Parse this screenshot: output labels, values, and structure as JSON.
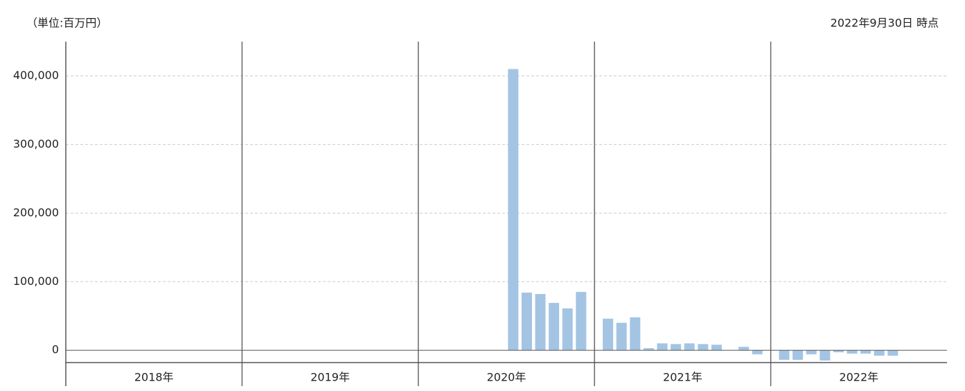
{
  "chart_data": {
    "type": "bar",
    "unit_note": "（単位:百万円）",
    "as_of": "2022年9月30日 時点",
    "color": "#a4c4e4",
    "grid": true,
    "ylim": [
      -18000,
      450000
    ],
    "yticks": [
      0,
      {
        "value": 100000,
        "label": "100,000"
      },
      {
        "value": 200000,
        "label": "200,000"
      },
      {
        "value": 300000,
        "label": "300,000"
      },
      {
        "value": 400000,
        "label": "400,000"
      }
    ],
    "groups": [
      {
        "label": "2018年",
        "values": [
          null,
          null,
          null,
          null,
          null,
          null,
          null,
          null,
          null,
          null,
          null,
          null
        ]
      },
      {
        "label": "2019年",
        "values": [
          null,
          null,
          null,
          null,
          null,
          null,
          null,
          null,
          null,
          null,
          null,
          null
        ]
      },
      {
        "label": "2020年",
        "values": [
          null,
          null,
          null,
          null,
          null,
          null,
          410000,
          84000,
          82000,
          69000,
          61000,
          85000
        ]
      },
      {
        "label": "2021年",
        "values": [
          46000,
          40000,
          48000,
          3000,
          10000,
          9000,
          10000,
          9000,
          8000,
          null,
          5000,
          -6000
        ]
      },
      {
        "label": "2022年",
        "values": [
          -14000,
          -14000,
          -6000,
          -15000,
          -3000,
          -5000,
          -5000,
          -8000,
          -8000,
          null,
          null,
          null
        ]
      }
    ]
  }
}
